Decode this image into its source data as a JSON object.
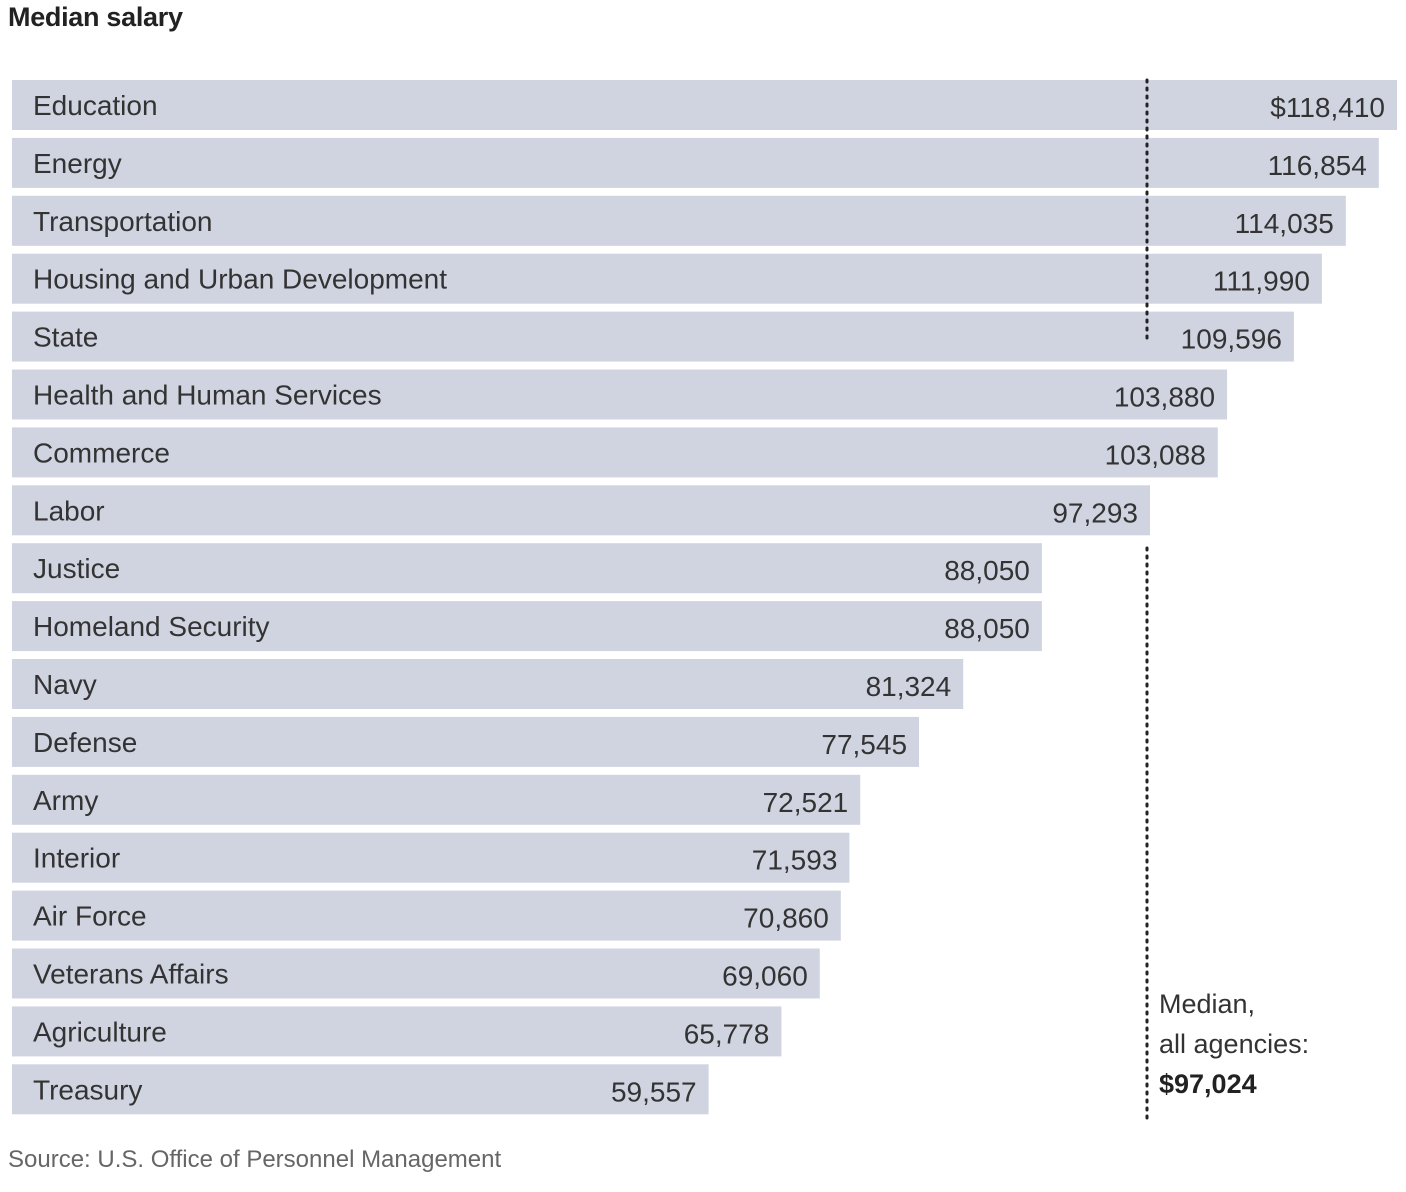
{
  "chart_data": {
    "type": "bar",
    "orientation": "horizontal",
    "title": "Median salary",
    "categories": [
      "Education",
      "Energy",
      "Transportation",
      "Housing and Urban Development",
      "State",
      "Health and Human Services",
      "Commerce",
      "Labor",
      "Justice",
      "Homeland Security",
      "Navy",
      "Defense",
      "Army",
      "Interior",
      "Air Force",
      "Veterans Affairs",
      "Agriculture",
      "Treasury"
    ],
    "values": [
      118410,
      116854,
      114035,
      111990,
      109596,
      103880,
      103088,
      97293,
      88050,
      88050,
      81324,
      77545,
      72521,
      71593,
      70860,
      69060,
      65778,
      59557
    ],
    "value_labels": [
      "$118,410",
      "116,854",
      "114,035",
      "111,990",
      "109,596",
      "103,880",
      "103,088",
      "97,293",
      "88,050",
      "88,050",
      "81,324",
      "77,545",
      "72,521",
      "71,593",
      "70,860",
      "69,060",
      "65,778",
      "59,557"
    ],
    "reference_line": {
      "value": 97024,
      "label_lines": [
        "Median,",
        "all agencies:",
        "$97,024"
      ]
    },
    "xlim": [
      0,
      118410
    ],
    "grid": false,
    "legend": "none",
    "bar_color": "#d0d4e1",
    "source": "Source: U.S. Office of Personnel Management"
  }
}
